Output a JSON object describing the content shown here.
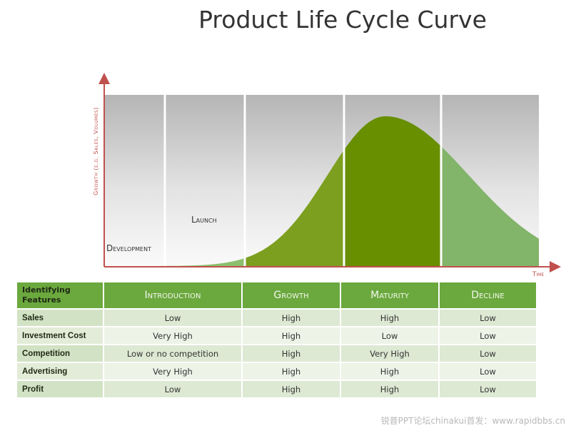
{
  "title": "Product Life Cycle Curve",
  "chart_data": {
    "type": "area",
    "title": "Product Life Cycle Curve",
    "xlabel": "Time",
    "ylabel": "Growth (e.g. Sales, Volumes)",
    "stages": [
      "Development",
      "Launch",
      "Introduction",
      "Growth",
      "Maturity",
      "Decline"
    ],
    "stage_labels_on_chart": [
      "Development",
      "Launch"
    ],
    "colors": {
      "introduction": "#8dbf6f",
      "growth": "#7d9f1f",
      "maturity": "#678f00",
      "decline": "#82b46a",
      "axis": "#c0504d"
    }
  },
  "table": {
    "header_label": "Identifying Features",
    "columns": [
      "Introduction",
      "Growth",
      "Maturity",
      "Decline"
    ],
    "rows": [
      {
        "feature": "Sales",
        "values": [
          "Low",
          "High",
          "High",
          "Low"
        ]
      },
      {
        "feature": "Investment Cost",
        "values": [
          "Very High",
          "High",
          "Low",
          "Low"
        ]
      },
      {
        "feature": "Competition",
        "values": [
          "Low or no competition",
          "High",
          "Very High",
          "Low"
        ]
      },
      {
        "feature": "Advertising",
        "values": [
          "Very High",
          "High",
          "High",
          "Low"
        ]
      },
      {
        "feature": "Profit",
        "values": [
          "Low",
          "High",
          "High",
          "Low"
        ]
      }
    ]
  },
  "watermark": "锐普PPT论坛chinakui首发：www.rapidbbs.cn"
}
